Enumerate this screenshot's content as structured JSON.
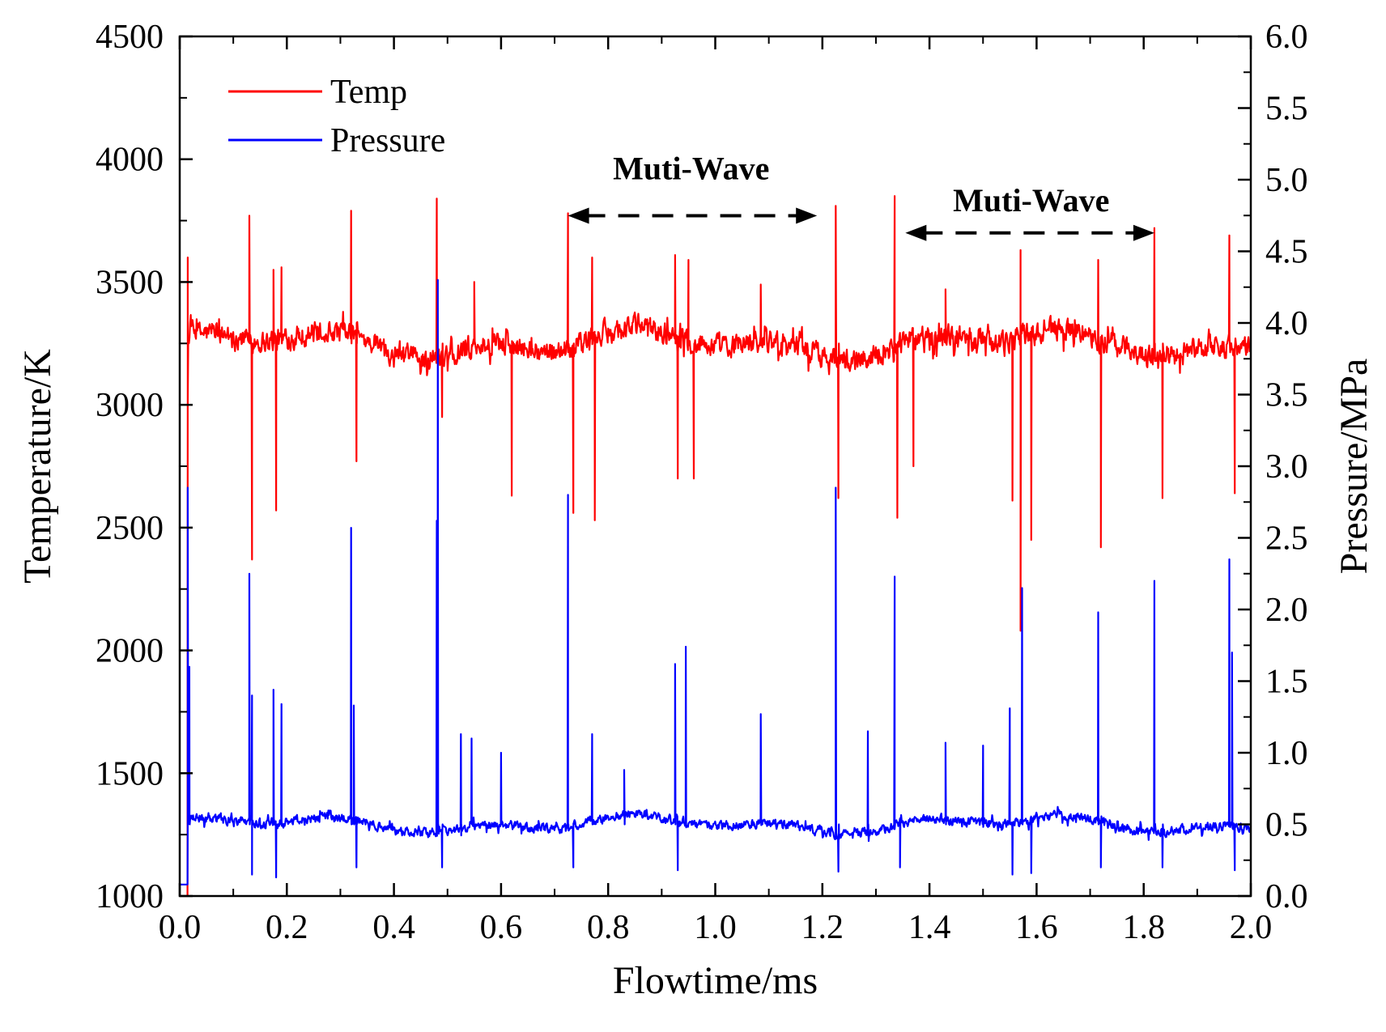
{
  "chart_data": {
    "type": "line",
    "xlabel": "Flowtime/ms",
    "ylabel_left": "Temperature/K",
    "ylabel_right": "Pressure/MPa",
    "xlim": [
      0.0,
      2.0
    ],
    "ylim_left": [
      1000,
      4500
    ],
    "ylim_right": [
      0.0,
      6.0
    ],
    "x_ticks": [
      "0.0",
      "0.2",
      "0.4",
      "0.6",
      "0.8",
      "1.0",
      "1.2",
      "1.4",
      "1.6",
      "1.8",
      "2.0"
    ],
    "y_left_ticks": [
      "1000",
      "1500",
      "2000",
      "2500",
      "3000",
      "3500",
      "4000",
      "4500"
    ],
    "y_right_ticks": [
      "0.0",
      "0.5",
      "1.0",
      "1.5",
      "2.0",
      "2.5",
      "3.0",
      "3.5",
      "4.0",
      "4.5",
      "5.0",
      "5.5",
      "6.0"
    ],
    "legend": {
      "position": "top-left",
      "entries": [
        "Temp",
        "Pressure"
      ]
    },
    "series": [
      {
        "name": "Temp",
        "axis": "left",
        "color": "#ff0000",
        "baseline": 3250,
        "noise": 70,
        "start_value": 1000,
        "peaks": [
          [
            0.015,
            3600
          ],
          [
            0.13,
            3770
          ],
          [
            0.175,
            3550
          ],
          [
            0.19,
            3560
          ],
          [
            0.32,
            3790
          ],
          [
            0.48,
            3840
          ],
          [
            0.55,
            3500
          ],
          [
            0.725,
            3780
          ],
          [
            0.77,
            3600
          ],
          [
            0.925,
            3610
          ],
          [
            0.95,
            3590
          ],
          [
            1.085,
            3490
          ],
          [
            1.225,
            3810
          ],
          [
            1.335,
            3850
          ],
          [
            1.43,
            3470
          ],
          [
            1.57,
            3630
          ],
          [
            1.715,
            3590
          ],
          [
            1.82,
            3720
          ],
          [
            1.96,
            3690
          ]
        ],
        "dips": [
          [
            0.015,
            3000
          ],
          [
            0.135,
            2370
          ],
          [
            0.18,
            2570
          ],
          [
            0.33,
            2770
          ],
          [
            0.49,
            2950
          ],
          [
            0.62,
            2630
          ],
          [
            0.735,
            2560
          ],
          [
            0.775,
            2530
          ],
          [
            0.93,
            2700
          ],
          [
            0.96,
            2700
          ],
          [
            1.23,
            2620
          ],
          [
            1.34,
            2540
          ],
          [
            1.37,
            2750
          ],
          [
            1.555,
            2610
          ],
          [
            1.57,
            2080
          ],
          [
            1.59,
            2450
          ],
          [
            1.72,
            2420
          ],
          [
            1.835,
            2620
          ],
          [
            1.97,
            2640
          ]
        ]
      },
      {
        "name": "Pressure",
        "axis": "right",
        "color": "#0000ff",
        "baseline": 0.5,
        "noise": 0.05,
        "start_value": 0.08,
        "peaks": [
          [
            0.015,
            2.85
          ],
          [
            0.018,
            1.6
          ],
          [
            0.13,
            2.25
          ],
          [
            0.135,
            1.4
          ],
          [
            0.175,
            1.44
          ],
          [
            0.19,
            1.34
          ],
          [
            0.32,
            2.57
          ],
          [
            0.325,
            1.33
          ],
          [
            0.48,
            2.62
          ],
          [
            0.482,
            4.3
          ],
          [
            0.525,
            1.13
          ],
          [
            0.545,
            1.1
          ],
          [
            0.6,
            1.0
          ],
          [
            0.725,
            2.8
          ],
          [
            0.77,
            1.13
          ],
          [
            0.83,
            0.88
          ],
          [
            0.925,
            1.62
          ],
          [
            0.945,
            1.74
          ],
          [
            1.085,
            1.27
          ],
          [
            1.225,
            2.85
          ],
          [
            1.285,
            1.15
          ],
          [
            1.335,
            2.23
          ],
          [
            1.43,
            1.07
          ],
          [
            1.5,
            1.05
          ],
          [
            1.55,
            1.31
          ],
          [
            1.573,
            2.15
          ],
          [
            1.715,
            1.98
          ],
          [
            1.82,
            2.2
          ],
          [
            1.96,
            2.35
          ],
          [
            1.965,
            1.7
          ]
        ],
        "dips": [
          [
            0.135,
            0.15
          ],
          [
            0.18,
            0.13
          ],
          [
            0.33,
            0.2
          ],
          [
            0.49,
            0.2
          ],
          [
            0.735,
            0.2
          ],
          [
            0.93,
            0.18
          ],
          [
            1.23,
            0.17
          ],
          [
            1.345,
            0.2
          ],
          [
            1.555,
            0.15
          ],
          [
            1.59,
            0.16
          ],
          [
            1.72,
            0.2
          ],
          [
            1.835,
            0.2
          ],
          [
            1.97,
            0.18
          ]
        ]
      }
    ],
    "annotations": [
      {
        "text": "Muti-Wave",
        "x_start": 0.725,
        "x_end": 1.19,
        "y_left": 3770,
        "label_x": 0.955,
        "label_y_left": 3965
      },
      {
        "text": "Muti-Wave",
        "x_start": 1.355,
        "x_end": 1.82,
        "y_left": 3700,
        "label_x": 1.59,
        "label_y_left": 3835
      }
    ]
  }
}
